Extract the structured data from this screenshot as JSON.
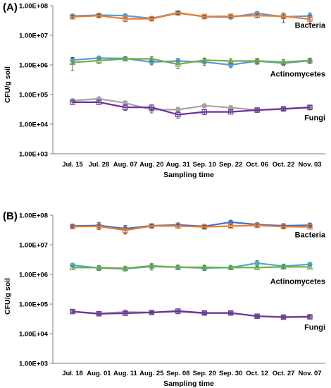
{
  "chart_data": [
    {
      "type": "line",
      "panel_label": "(A)",
      "xlabel": "Sampling time",
      "ylabel": "CFU/g soil",
      "yscale": "log",
      "ylim": [
        1000,
        100000000
      ],
      "y_ticks": [
        "1.00E+03",
        "1.00E+04",
        "1.00E+05",
        "1.00E+06",
        "1.00E+07",
        "1.00E+08"
      ],
      "y_tick_values": [
        1000,
        10000,
        100000,
        1000000,
        10000000,
        100000000
      ],
      "categories": [
        "Jul. 15",
        "Jul. 28",
        "Aug. 07",
        "Aug. 20",
        "Aug. 31",
        "Sep. 10",
        "Sep. 22",
        "Oct. 06",
        "Oct. 22",
        "Nov. 03"
      ],
      "grid": false,
      "group_labels": [
        {
          "text": "Bacteria",
          "near_value": 22000000
        },
        {
          "text": "Actinomycetes",
          "near_value": 500000
        },
        {
          "text": "Fungi",
          "near_value": 17000
        }
      ],
      "series": [
        {
          "group": "Bacteria",
          "color": "#5b9bd5",
          "marker": "circle",
          "values": [
            45000000,
            48000000,
            46000000,
            37000000,
            58000000,
            42000000,
            41000000,
            55000000,
            42000000,
            45000000
          ],
          "errors": [
            6000000,
            6000000,
            6000000,
            5000000,
            6000000,
            5000000,
            5000000,
            6000000,
            15000000,
            12000000
          ]
        },
        {
          "group": "Bacteria",
          "color": "#ed7d31",
          "marker": "square",
          "values": [
            42000000,
            46000000,
            36000000,
            36000000,
            56000000,
            43000000,
            44000000,
            46000000,
            44000000,
            35000000
          ],
          "errors": [
            6000000,
            5000000,
            7000000,
            5000000,
            6000000,
            5000000,
            5000000,
            6000000,
            8000000,
            10000000
          ]
        },
        {
          "group": "Actinomycetes",
          "color": "#5b9bd5",
          "marker": "circle",
          "values": [
            1450000,
            1700000,
            1650000,
            1250000,
            1350000,
            1250000,
            1000000,
            1350000,
            1150000,
            1400000
          ],
          "errors": [
            350000,
            300000,
            200000,
            250000,
            300000,
            300000,
            200000,
            300000,
            200000,
            200000
          ]
        },
        {
          "group": "Actinomycetes",
          "color": "#70ad47",
          "marker": "triangle",
          "values": [
            1200000,
            1400000,
            1600000,
            1600000,
            1050000,
            1450000,
            1350000,
            1350000,
            1250000,
            1400000
          ],
          "errors": [
            550000,
            300000,
            250000,
            300000,
            300000,
            250000,
            250000,
            250000,
            250000,
            300000
          ]
        },
        {
          "group": "Fungi",
          "color": "#a5a5a5",
          "marker": "circle",
          "values": [
            62000,
            72000,
            52000,
            31000,
            31000,
            42000,
            36000,
            30000,
            32000,
            36000
          ],
          "errors": [
            8000,
            9000,
            9000,
            7000,
            6000,
            6000,
            6000,
            5000,
            4000,
            6000
          ]
        },
        {
          "group": "Fungi",
          "color": "#7030a0",
          "marker": "square",
          "values": [
            55000,
            55000,
            37000,
            37000,
            21000,
            26000,
            26000,
            30000,
            33000,
            37000
          ],
          "errors": [
            9000,
            9000,
            8000,
            8000,
            5000,
            5000,
            4000,
            5000,
            4000,
            6000
          ]
        }
      ]
    },
    {
      "type": "line",
      "panel_label": "(B)",
      "xlabel": "Sampling time",
      "ylabel": "CFU/g soil",
      "yscale": "log",
      "ylim": [
        1000,
        100000000
      ],
      "y_ticks": [
        "1.00E+03",
        "1.00E+04",
        "1.00E+05",
        "1.00E+06",
        "1.00E+07",
        "1.00E+08"
      ],
      "y_tick_values": [
        1000,
        10000,
        100000,
        1000000,
        10000000,
        100000000
      ],
      "categories": [
        "Jul. 18",
        "Aug. 01",
        "Aug. 11",
        "Aug. 25",
        "Sep. 08",
        "Sep. 20",
        "Sep. 30",
        "Oct. 12",
        "Oct. 27",
        "Nov. 07"
      ],
      "grid": false,
      "group_labels": [
        {
          "text": "Bacteria",
          "near_value": 22000000
        },
        {
          "text": "Actinomycetes",
          "near_value": 600000
        },
        {
          "text": "Fungi",
          "near_value": 17000
        }
      ],
      "series": [
        {
          "group": "Bacteria",
          "color": "#4472c4",
          "marker": "circle",
          "values": [
            43000000,
            45000000,
            35000000,
            44000000,
            47000000,
            42000000,
            58000000,
            48000000,
            44000000,
            46000000
          ],
          "errors": [
            6000000,
            12000000,
            10000000,
            8000000,
            6000000,
            5000000,
            6000000,
            5000000,
            8000000,
            8000000
          ]
        },
        {
          "group": "Bacteria",
          "color": "#ed7d31",
          "marker": "square",
          "values": [
            41000000,
            42000000,
            31000000,
            43000000,
            43000000,
            40000000,
            43000000,
            45000000,
            41000000,
            40000000
          ],
          "errors": [
            6000000,
            8000000,
            8000000,
            6000000,
            6000000,
            5000000,
            5000000,
            6000000,
            6000000,
            6000000
          ]
        },
        {
          "group": "Actinomycetes",
          "color": "#4bacc6",
          "marker": "circle",
          "values": [
            2050000,
            1650000,
            1550000,
            1850000,
            1750000,
            1650000,
            1700000,
            2400000,
            1900000,
            2200000
          ],
          "errors": [
            300000,
            300000,
            250000,
            450000,
            300000,
            300000,
            250000,
            550000,
            300000,
            300000
          ]
        },
        {
          "group": "Actinomycetes",
          "color": "#70ad47",
          "marker": "triangle",
          "values": [
            1700000,
            1700000,
            1600000,
            1950000,
            1750000,
            1750000,
            1700000,
            1700000,
            1800000,
            1800000
          ],
          "errors": [
            250000,
            250000,
            250000,
            300000,
            300000,
            250000,
            250000,
            250000,
            250000,
            250000
          ]
        },
        {
          "group": "Fungi",
          "color": "#a5a5a5",
          "marker": "circle",
          "values": [
            56000,
            48000,
            54000,
            52000,
            55000,
            49000,
            50000,
            39000,
            37000,
            38000
          ],
          "errors": [
            6000,
            5000,
            6000,
            5000,
            8000,
            5000,
            5000,
            4000,
            4000,
            4000
          ]
        },
        {
          "group": "Fungi",
          "color": "#7030a0",
          "marker": "square",
          "values": [
            56000,
            47000,
            49000,
            52000,
            58000,
            50000,
            50000,
            39000,
            36000,
            37000
          ],
          "errors": [
            6000,
            5000,
            6000,
            5000,
            10000,
            5000,
            5000,
            4000,
            4000,
            4000
          ]
        }
      ]
    }
  ]
}
